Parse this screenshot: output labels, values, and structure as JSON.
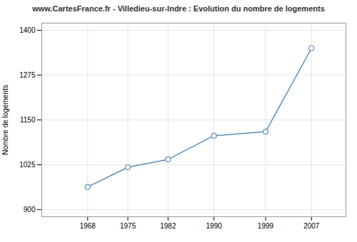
{
  "chart_data": {
    "type": "line",
    "title": "www.CartesFrance.fr - Villedieu-sur-Indre : Evolution du nombre de logements",
    "ylabel": "Nombre de logements",
    "x": [
      1968,
      1975,
      1982,
      1990,
      1999,
      2007
    ],
    "values": [
      963,
      1018,
      1040,
      1106,
      1117,
      1350
    ],
    "color": "#5b8db8",
    "marker": "circle",
    "xlim": [
      1960,
      2013
    ],
    "xticks": [
      1968,
      1975,
      1982,
      1990,
      1999,
      2007
    ],
    "ylim": [
      880,
      1420
    ],
    "yticks": [
      900,
      1025,
      1150,
      1275,
      1400
    ],
    "grid": true
  }
}
